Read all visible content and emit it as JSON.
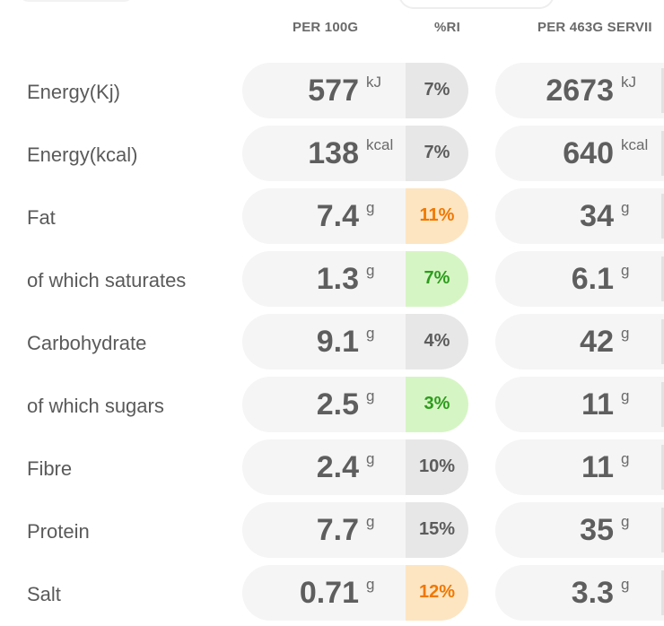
{
  "headers": {
    "per_100g": "PER 100G",
    "ri": "%RI",
    "per_serving": "PER 463G SERVII"
  },
  "rows": [
    {
      "label": "Energy(Kj)",
      "per100_value": "577",
      "per100_unit": "kJ",
      "ri": "7%",
      "ri_level": "neutral",
      "serving_value": "2673",
      "serving_unit": "kJ"
    },
    {
      "label": "Energy(kcal)",
      "per100_value": "138",
      "per100_unit": "kcal",
      "ri": "7%",
      "ri_level": "neutral",
      "serving_value": "640",
      "serving_unit": "kcal"
    },
    {
      "label": "Fat",
      "per100_value": "7.4",
      "per100_unit": "g",
      "ri": "11%",
      "ri_level": "medium",
      "serving_value": "34",
      "serving_unit": "g"
    },
    {
      "label": "of which saturates",
      "per100_value": "1.3",
      "per100_unit": "g",
      "ri": "7%",
      "ri_level": "low",
      "serving_value": "6.1",
      "serving_unit": "g"
    },
    {
      "label": "Carbohydrate",
      "per100_value": "9.1",
      "per100_unit": "g",
      "ri": "4%",
      "ri_level": "neutral",
      "serving_value": "42",
      "serving_unit": "g"
    },
    {
      "label": "of which sugars",
      "per100_value": "2.5",
      "per100_unit": "g",
      "ri": "3%",
      "ri_level": "low",
      "serving_value": "11",
      "serving_unit": "g"
    },
    {
      "label": "Fibre",
      "per100_value": "2.4",
      "per100_unit": "g",
      "ri": "10%",
      "ri_level": "neutral",
      "serving_value": "11",
      "serving_unit": "g"
    },
    {
      "label": "Protein",
      "per100_value": "7.7",
      "per100_unit": "g",
      "ri": "15%",
      "ri_level": "neutral",
      "serving_value": "35",
      "serving_unit": "g"
    },
    {
      "label": "Salt",
      "per100_value": "0.71",
      "per100_unit": "g",
      "ri": "12%",
      "ri_level": "medium",
      "serving_value": "3.3",
      "serving_unit": "g"
    }
  ],
  "colors": {
    "ri_neutral_bg": "#e7e7e7",
    "ri_medium_bg": "#fde5c2",
    "ri_medium_text": "#f07800",
    "ri_low_bg": "#d6f5c4",
    "ri_low_text": "#2c9c1c",
    "pill_bg": "#f5f5f5"
  }
}
